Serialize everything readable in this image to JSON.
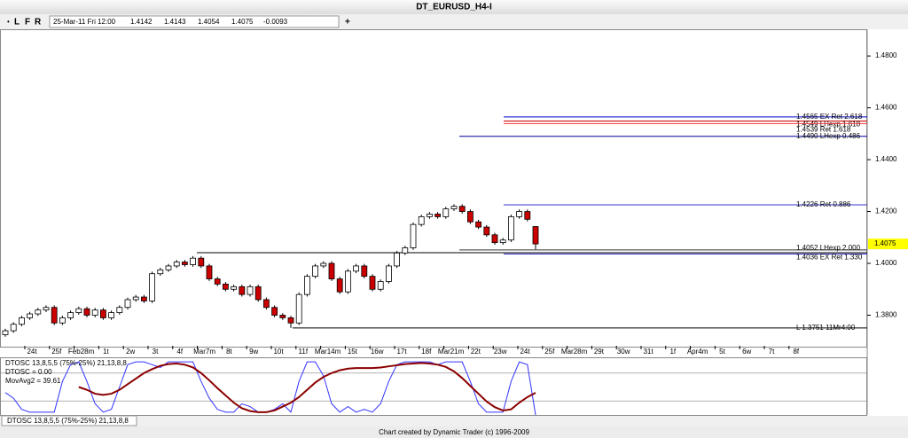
{
  "window_title": "DT_EURUSD_H4-I",
  "toolbar_buttons": [
    "L",
    "F",
    "R"
  ],
  "chart_data": {
    "type": "candlestick",
    "date": "25-Mar-11 Fri 12:00",
    "change": "-0.0093",
    "ylim": [
      1.3682,
      1.4903
    ],
    "yticks": [
      {
        "value": 1.38,
        "label": "1.3800"
      },
      {
        "value": 1.4,
        "label": "1.4000"
      },
      {
        "value": 1.42,
        "label": "1.4200"
      },
      {
        "value": 1.44,
        "label": "1.4400"
      },
      {
        "value": 1.46,
        "label": "1.4600"
      },
      {
        "value": 1.48,
        "label": "1.4800"
      }
    ],
    "x_labels": [
      "24t",
      "25f",
      "Feb28m",
      "1t",
      "2w",
      "3t",
      "4f",
      "Mar7m",
      "8t",
      "9w",
      "10t",
      "11f",
      "Mar14m",
      "15t",
      "16w",
      "17t",
      "18f",
      "Mar21m",
      "22t",
      "23w",
      "24t",
      "25f",
      "Mar28m",
      "29t",
      "30w",
      "31t",
      "1f",
      "Apr4m",
      "5t",
      "6w",
      "7t",
      "8f"
    ],
    "ohlc": [
      [
        1.3725,
        1.3748,
        1.3717,
        1.374
      ],
      [
        1.374,
        1.3773,
        1.3732,
        1.3765
      ],
      [
        1.3765,
        1.3798,
        1.3757,
        1.379
      ],
      [
        1.379,
        1.3813,
        1.3782,
        1.3805
      ],
      [
        1.3805,
        1.3828,
        1.3797,
        1.382
      ],
      [
        1.382,
        1.3838,
        1.3812,
        1.383
      ],
      [
        1.383,
        1.3838,
        1.3762,
        1.377
      ],
      [
        1.377,
        1.3798,
        1.3762,
        1.379
      ],
      [
        1.379,
        1.3818,
        1.3782,
        1.381
      ],
      [
        1.381,
        1.3833,
        1.3802,
        1.3825
      ],
      [
        1.3825,
        1.3833,
        1.3792,
        1.38
      ],
      [
        1.38,
        1.3828,
        1.3792,
        1.382
      ],
      [
        1.382,
        1.3828,
        1.3782,
        1.379
      ],
      [
        1.379,
        1.3818,
        1.3782,
        1.381
      ],
      [
        1.381,
        1.3838,
        1.3802,
        1.383
      ],
      [
        1.383,
        1.3868,
        1.3822,
        1.386
      ],
      [
        1.386,
        1.3878,
        1.3852,
        1.387
      ],
      [
        1.387,
        1.3878,
        1.3847,
        1.3855
      ],
      [
        1.3855,
        1.3968,
        1.3847,
        1.396
      ],
      [
        1.396,
        1.3983,
        1.3952,
        1.3975
      ],
      [
        1.3975,
        1.3998,
        1.3967,
        1.399
      ],
      [
        1.399,
        1.4013,
        1.3982,
        1.4005
      ],
      [
        1.4005,
        1.4013,
        1.3987,
        1.3995
      ],
      [
        1.3995,
        1.4028,
        1.3987,
        1.402
      ],
      [
        1.402,
        1.4028,
        1.3982,
        1.399
      ],
      [
        1.399,
        1.3998,
        1.3932,
        1.394
      ],
      [
        1.394,
        1.3948,
        1.3912,
        1.392
      ],
      [
        1.392,
        1.3928,
        1.3892,
        1.39
      ],
      [
        1.39,
        1.3918,
        1.3892,
        1.391
      ],
      [
        1.391,
        1.3918,
        1.3872,
        1.388
      ],
      [
        1.388,
        1.3918,
        1.3872,
        1.391
      ],
      [
        1.391,
        1.3918,
        1.3852,
        1.386
      ],
      [
        1.386,
        1.3868,
        1.3822,
        1.383
      ],
      [
        1.383,
        1.3838,
        1.3792,
        1.38
      ],
      [
        1.38,
        1.3808,
        1.3782,
        1.379
      ],
      [
        1.379,
        1.3798,
        1.3751,
        1.377
      ],
      [
        1.377,
        1.3888,
        1.3762,
        1.388
      ],
      [
        1.388,
        1.3958,
        1.3872,
        1.395
      ],
      [
        1.395,
        1.3998,
        1.3942,
        1.399
      ],
      [
        1.399,
        1.4008,
        1.3982,
        1.4
      ],
      [
        1.4,
        1.4008,
        1.3932,
        1.394
      ],
      [
        1.394,
        1.3948,
        1.3882,
        1.389
      ],
      [
        1.389,
        1.3978,
        1.3882,
        1.397
      ],
      [
        1.397,
        1.3998,
        1.3962,
        1.399
      ],
      [
        1.399,
        1.3998,
        1.3942,
        1.395
      ],
      [
        1.395,
        1.3958,
        1.3892,
        1.39
      ],
      [
        1.39,
        1.3938,
        1.3892,
        1.393
      ],
      [
        1.393,
        1.3998,
        1.3922,
        1.399
      ],
      [
        1.399,
        1.4048,
        1.3982,
        1.404
      ],
      [
        1.404,
        1.4068,
        1.4032,
        1.406
      ],
      [
        1.406,
        1.4158,
        1.4052,
        1.415
      ],
      [
        1.415,
        1.4188,
        1.4142,
        1.418
      ],
      [
        1.418,
        1.4198,
        1.4172,
        1.419
      ],
      [
        1.419,
        1.4198,
        1.4172,
        1.418
      ],
      [
        1.418,
        1.4218,
        1.4172,
        1.421
      ],
      [
        1.421,
        1.4228,
        1.4202,
        1.422
      ],
      [
        1.422,
        1.4228,
        1.4192,
        1.42
      ],
      [
        1.42,
        1.4208,
        1.4152,
        1.416
      ],
      [
        1.416,
        1.4168,
        1.4132,
        1.414
      ],
      [
        1.414,
        1.4148,
        1.4102,
        1.411
      ],
      [
        1.411,
        1.4118,
        1.4072,
        1.408
      ],
      [
        1.408,
        1.4098,
        1.4072,
        1.409
      ],
      [
        1.409,
        1.4188,
        1.4082,
        1.418
      ],
      [
        1.418,
        1.4208,
        1.4172,
        1.42
      ],
      [
        1.42,
        1.4208,
        1.4162,
        1.417
      ],
      [
        1.4142,
        1.4143,
        1.4054,
        1.4075
      ]
    ],
    "up_color": "#ffffff",
    "down_color": "#cc0000",
    "levels": [
      {
        "price": 1.4565,
        "label": "1.4565 EX Ret 2.618",
        "color": "#0000cc"
      },
      {
        "price": 1.4549,
        "label": "1.4549 LHexp 1.618",
        "color": "#cc0000"
      },
      {
        "price": 1.4539,
        "label": "1.4539 Ret 1.618",
        "color": "#ff3333"
      },
      {
        "price": 1.449,
        "label": "1.4490 LHexp 0.486",
        "color": "#000099"
      },
      {
        "price": 1.4226,
        "label": "1.4226 Ret 0.886",
        "color": "#3333cc"
      },
      {
        "price": 1.4052,
        "label": "1.4052 LHexp 2.000",
        "color": "#333333"
      },
      {
        "price": 1.4041,
        "color": "#000000"
      },
      {
        "price": 1.4036,
        "label": "1.4036 EX Ret 1.330",
        "color": "#3333cc"
      },
      {
        "price": 1.3751,
        "label": "L 1.3751 11Mr4:00",
        "color": "#000000"
      }
    ],
    "indicator": {
      "type": "line",
      "lines": [
        "DTOSC 13,8,5,5 (75%-25%) 21,13,8,8",
        "DTOSC = 0.00",
        "MovAvg2 = 39.61"
      ],
      "ylim": [
        0,
        100
      ],
      "levels": [
        75,
        25
      ],
      "series": [
        {
          "color": "#3333ff",
          "values": [
            40,
            30,
            10,
            5,
            5,
            5,
            5,
            60,
            90,
            95,
            60,
            20,
            5,
            10,
            50,
            90,
            95,
            95,
            90,
            85,
            95,
            95,
            95,
            95,
            60,
            30,
            10,
            5,
            5,
            20,
            15,
            5,
            5,
            10,
            20,
            5,
            60,
            95,
            95,
            70,
            20,
            5,
            15,
            5,
            10,
            5,
            20,
            60,
            90,
            95,
            95,
            95,
            95,
            90,
            95,
            95,
            95,
            60,
            20,
            5,
            5,
            5,
            60,
            95,
            90,
            0
          ]
        },
        {
          "color": "#8b0000",
          "values": [
            null,
            null,
            null,
            null,
            null,
            null,
            null,
            null,
            null,
            50,
            45,
            38,
            36,
            38,
            45,
            55,
            65,
            75,
            82,
            88,
            91,
            92,
            90,
            85,
            75,
            62,
            48,
            35,
            22,
            12,
            7,
            5,
            5,
            8,
            15,
            22,
            32,
            45,
            58,
            68,
            75,
            80,
            83,
            84,
            84,
            84,
            85,
            87,
            89,
            91,
            92,
            93,
            92,
            90,
            86,
            78,
            66,
            52,
            38,
            24,
            14,
            8,
            10,
            22,
            32,
            39.61
          ]
        }
      ]
    }
  },
  "footer": "Chart created by Dynamic Trader  (c) 1996-2009"
}
